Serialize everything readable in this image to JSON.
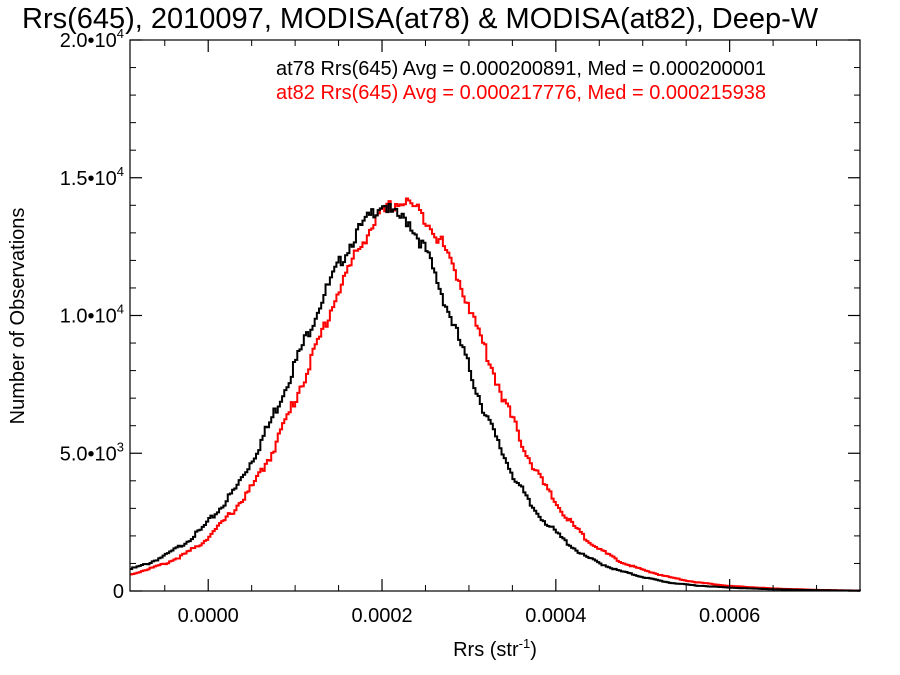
{
  "chart_data": {
    "type": "line",
    "title": "Rrs(645), 2010097, MODISA(at78) & MODISA(at82), Deep-W",
    "xlabel": "Rrs (str",
    "xlabel_sup": "-1",
    "xlabel_close": ")",
    "ylabel": "Number of Observations",
    "xlim": [
      -9e-05,
      0.00075
    ],
    "ylim": [
      0,
      20000
    ],
    "grid": false,
    "x_ticks": [
      {
        "value": 0.0,
        "label": "0.0000"
      },
      {
        "value": 0.0002,
        "label": "0.0002"
      },
      {
        "value": 0.0004,
        "label": "0.0004"
      },
      {
        "value": 0.0006,
        "label": "0.0006"
      }
    ],
    "y_ticks": [
      {
        "value": 0,
        "mant": "0",
        "exp": ""
      },
      {
        "value": 5000,
        "mant": "5.0•10",
        "exp": "3"
      },
      {
        "value": 10000,
        "mant": "1.0•10",
        "exp": "4"
      },
      {
        "value": 15000,
        "mant": "1.5•10",
        "exp": "4"
      },
      {
        "value": 20000,
        "mant": "2.0•10",
        "exp": "4"
      }
    ],
    "annotations": [
      {
        "text": "at78 Rrs(645) Avg = 0.000200891, Med = 0.000200001",
        "color": "#000000"
      },
      {
        "text": "at82 Rrs(645) Avg = 0.000217776, Med = 0.000215938",
        "color": "#ff0000"
      }
    ],
    "series": [
      {
        "color": "#000000",
        "x": [
          -9e-05,
          -7e-05,
          -5e-05,
          -3e-05,
          -1e-05,
          1e-05,
          3e-05,
          5e-05,
          7e-05,
          9e-05,
          0.00011,
          0.00013,
          0.00015,
          0.00017,
          0.00019,
          0.0002,
          0.00021,
          0.00023,
          0.00025,
          0.00027,
          0.00029,
          0.00031,
          0.00033,
          0.00035,
          0.00037,
          0.00039,
          0.00041,
          0.00043,
          0.00045,
          0.00047,
          0.0005,
          0.00053,
          0.00056,
          0.0006,
          0.00065,
          0.0007,
          0.00075
        ],
        "values": [
          800,
          1000,
          1300,
          1700,
          2200,
          2900,
          3700,
          4800,
          6100,
          7600,
          9100,
          10600,
          11900,
          13000,
          13800,
          14100,
          13700,
          13400,
          12300,
          10600,
          8900,
          7100,
          5500,
          4200,
          3100,
          2400,
          1800,
          1300,
          1000,
          750,
          500,
          300,
          200,
          120,
          60,
          30,
          10
        ]
      },
      {
        "color": "#ff0000",
        "x": [
          -9e-05,
          -7e-05,
          -5e-05,
          -3e-05,
          -1e-05,
          1e-05,
          3e-05,
          5e-05,
          7e-05,
          9e-05,
          0.00011,
          0.00013,
          0.00015,
          0.00017,
          0.00019,
          0.00021,
          0.00022,
          0.00023,
          0.00025,
          0.00027,
          0.00029,
          0.00031,
          0.00033,
          0.00035,
          0.00037,
          0.00039,
          0.00041,
          0.00043,
          0.00045,
          0.00047,
          0.0005,
          0.00053,
          0.00056,
          0.0006,
          0.00065,
          0.0007,
          0.00075
        ],
        "values": [
          600,
          800,
          1000,
          1300,
          1700,
          2300,
          3000,
          3800,
          4900,
          6300,
          7800,
          9400,
          11000,
          12300,
          13400,
          14000,
          14100,
          14100,
          13500,
          12500,
          11100,
          9400,
          7700,
          6100,
          4700,
          3600,
          2700,
          2000,
          1500,
          1100,
          750,
          500,
          320,
          180,
          90,
          40,
          15
        ]
      }
    ]
  }
}
